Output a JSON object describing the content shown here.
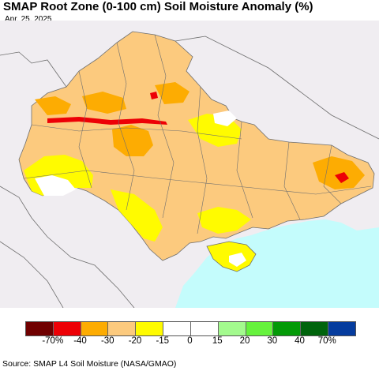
{
  "header": {
    "title": "SMAP Root Zone (0-100 cm) Soil Moisture Anomaly (%)",
    "date": "Apr. 25, 2025"
  },
  "colors": {
    "land_outside": "#f0edf1",
    "sea": "#c4fcfc",
    "moderate_dry": "#fcca7e",
    "light_dry": "#fffb00",
    "dry": "#fdac02",
    "very_dry": "#ed0006",
    "near_normal": "#ffffff",
    "border": "#6e6e6e"
  },
  "legend": {
    "colors": [
      "#700000",
      "#ed0006",
      "#fdac02",
      "#fcca7e",
      "#fffb00",
      "#ffffff",
      "#ffffff",
      "#a3fa8e",
      "#66f23d",
      "#039a07",
      "#00640c",
      "#053c9e"
    ],
    "labels": [
      "-70%",
      "-40",
      "-30",
      "-20",
      "-15",
      "0",
      "15",
      "20",
      "30",
      "40",
      "70%"
    ]
  },
  "source": "Source: SMAP L4 Soil Moisture (NASA/GMAO)"
}
